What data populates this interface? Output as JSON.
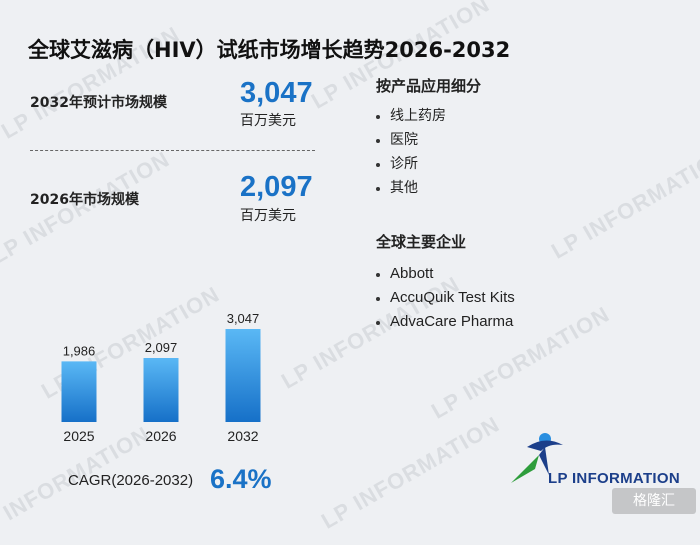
{
  "title": "全球艾滋病（HIV）试纸市场增长趋势2026-2032",
  "metrics": [
    {
      "label": "2032年预计市场规模",
      "value": "3,047",
      "unit": "百万美元"
    },
    {
      "label": "2026年市场规模",
      "value": "2,097",
      "unit": "百万美元"
    }
  ],
  "segments": {
    "title": "按产品应用细分",
    "items": [
      "线上药房",
      "医院",
      "诊所",
      "其他"
    ]
  },
  "companies": {
    "title": "全球主要企业",
    "items": [
      "Abbott",
      "AccuQuik Test Kits",
      "AdvaCare Pharma"
    ]
  },
  "chart_data": {
    "type": "bar",
    "categories": [
      "2025",
      "2026",
      "2032"
    ],
    "values": [
      1986,
      2097,
      3047
    ],
    "value_labels": [
      "1,986",
      "2,097",
      "3,047"
    ],
    "title": "",
    "xlabel": "",
    "ylabel": "",
    "ylim": [
      0,
      3047
    ],
    "grid": false,
    "legend": "none",
    "bar_color_top": "#5ab8f5",
    "bar_color_bottom": "#1670c8"
  },
  "cagr": {
    "label": "CAGR(2026-2032)",
    "value": "6.4%"
  },
  "logo": {
    "text": "LP INFORMATION"
  },
  "watermark": {
    "text": "LP INFORMATION"
  },
  "corner_badge": {
    "text": "格隆汇"
  },
  "colors": {
    "accent": "#1a72c6",
    "logo_blue": "#1c3f8a",
    "logo_green": "#2e9d3c",
    "background": "#eef0f3"
  }
}
